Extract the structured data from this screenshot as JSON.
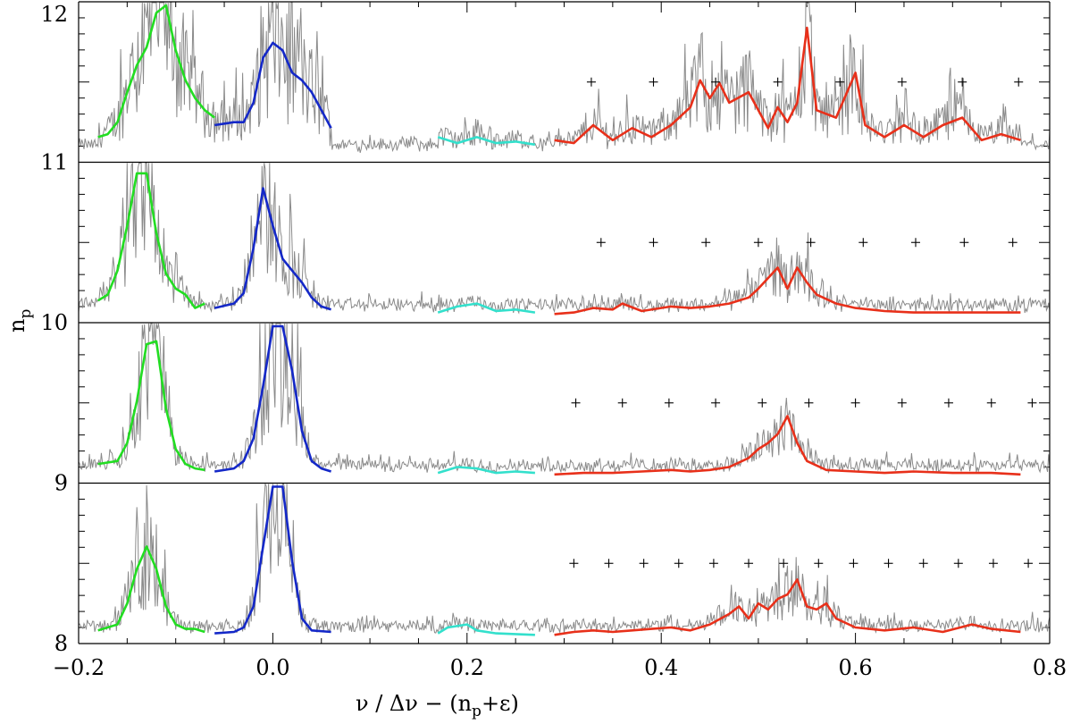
{
  "chart_data": {
    "type": "line",
    "title": "",
    "xlabel": "ν / Δν − (n",
    "xlabel_sub": "p",
    "xlabel_tail": "+ε)",
    "ylabel": "n",
    "ylabel_sub": "p",
    "xlim": [
      -0.2,
      0.8
    ],
    "x_ticks": [
      "−0.2",
      "0.0",
      "0.2",
      "0.4",
      "0.6",
      "0.8"
    ],
    "x_tick_values": [
      -0.2,
      0.0,
      0.2,
      0.4,
      0.6,
      0.8
    ],
    "grid": false,
    "legend": "none",
    "colors": {
      "spectrum": "#8a8a8a",
      "l2": "#22dd22",
      "l0": "#1428c8",
      "l3": "#33e0cc",
      "mixed_l1": "#e8301a",
      "frame": "#000000",
      "markers": "#000000"
    },
    "panels": [
      {
        "name": "n_p = 11",
        "y_top_label": "12",
        "y_bottom_label": "11",
        "smooth_green": [
          [
            -0.18,
            0.12
          ],
          [
            -0.17,
            0.14
          ],
          [
            -0.16,
            0.22
          ],
          [
            -0.15,
            0.42
          ],
          [
            -0.14,
            0.6
          ],
          [
            -0.13,
            0.72
          ],
          [
            -0.12,
            0.95
          ],
          [
            -0.11,
            1.0
          ],
          [
            -0.1,
            0.7
          ],
          [
            -0.09,
            0.5
          ],
          [
            -0.08,
            0.38
          ],
          [
            -0.07,
            0.3
          ],
          [
            -0.06,
            0.25
          ]
        ],
        "smooth_blue": [
          [
            -0.06,
            0.2
          ],
          [
            -0.04,
            0.22
          ],
          [
            -0.03,
            0.22
          ],
          [
            -0.02,
            0.35
          ],
          [
            -0.01,
            0.65
          ],
          [
            0.0,
            0.75
          ],
          [
            0.01,
            0.7
          ],
          [
            0.02,
            0.55
          ],
          [
            0.03,
            0.5
          ],
          [
            0.04,
            0.42
          ],
          [
            0.05,
            0.3
          ],
          [
            0.06,
            0.18
          ]
        ],
        "smooth_cyan": [
          [
            0.17,
            0.12
          ],
          [
            0.19,
            0.08
          ],
          [
            0.21,
            0.12
          ],
          [
            0.23,
            0.08
          ],
          [
            0.25,
            0.09
          ],
          [
            0.27,
            0.07
          ]
        ],
        "smooth_red": [
          [
            0.29,
            0.1
          ],
          [
            0.31,
            0.08
          ],
          [
            0.33,
            0.2
          ],
          [
            0.35,
            0.1
          ],
          [
            0.37,
            0.18
          ],
          [
            0.39,
            0.12
          ],
          [
            0.41,
            0.2
          ],
          [
            0.43,
            0.32
          ],
          [
            0.44,
            0.5
          ],
          [
            0.45,
            0.38
          ],
          [
            0.46,
            0.48
          ],
          [
            0.47,
            0.35
          ],
          [
            0.49,
            0.42
          ],
          [
            0.5,
            0.3
          ],
          [
            0.51,
            0.18
          ],
          [
            0.52,
            0.32
          ],
          [
            0.53,
            0.22
          ],
          [
            0.54,
            0.35
          ],
          [
            0.55,
            0.85
          ],
          [
            0.56,
            0.3
          ],
          [
            0.58,
            0.25
          ],
          [
            0.6,
            0.55
          ],
          [
            0.61,
            0.2
          ],
          [
            0.63,
            0.12
          ],
          [
            0.65,
            0.2
          ],
          [
            0.67,
            0.12
          ],
          [
            0.69,
            0.2
          ],
          [
            0.71,
            0.25
          ],
          [
            0.73,
            0.1
          ],
          [
            0.75,
            0.14
          ],
          [
            0.77,
            0.1
          ]
        ],
        "plus_markers_x": [
          0.328,
          0.392,
          0.456,
          0.52,
          0.584,
          0.648,
          0.71,
          0.768
        ],
        "plus_y": 0.5
      },
      {
        "name": "n_p = 10",
        "y_top_label": "11",
        "y_bottom_label": "10",
        "smooth_green": [
          [
            -0.18,
            0.1
          ],
          [
            -0.17,
            0.14
          ],
          [
            -0.16,
            0.3
          ],
          [
            -0.15,
            0.6
          ],
          [
            -0.14,
            0.95
          ],
          [
            -0.13,
            0.95
          ],
          [
            -0.12,
            0.55
          ],
          [
            -0.11,
            0.28
          ],
          [
            -0.1,
            0.18
          ],
          [
            -0.09,
            0.14
          ],
          [
            -0.08,
            0.05
          ],
          [
            -0.07,
            0.08
          ]
        ],
        "smooth_blue": [
          [
            -0.06,
            0.05
          ],
          [
            -0.04,
            0.08
          ],
          [
            -0.03,
            0.15
          ],
          [
            -0.02,
            0.45
          ],
          [
            -0.01,
            0.85
          ],
          [
            0.0,
            0.6
          ],
          [
            0.01,
            0.38
          ],
          [
            0.02,
            0.3
          ],
          [
            0.03,
            0.22
          ],
          [
            0.04,
            0.12
          ],
          [
            0.05,
            0.06
          ],
          [
            0.06,
            0.04
          ]
        ],
        "smooth_cyan": [
          [
            0.17,
            0.02
          ],
          [
            0.19,
            0.06
          ],
          [
            0.21,
            0.08
          ],
          [
            0.23,
            0.03
          ],
          [
            0.25,
            0.04
          ],
          [
            0.27,
            0.02
          ]
        ],
        "smooth_red": [
          [
            0.29,
            0.01
          ],
          [
            0.31,
            0.02
          ],
          [
            0.33,
            0.05
          ],
          [
            0.35,
            0.04
          ],
          [
            0.36,
            0.08
          ],
          [
            0.38,
            0.03
          ],
          [
            0.41,
            0.06
          ],
          [
            0.43,
            0.05
          ],
          [
            0.45,
            0.06
          ],
          [
            0.47,
            0.08
          ],
          [
            0.49,
            0.12
          ],
          [
            0.5,
            0.18
          ],
          [
            0.51,
            0.25
          ],
          [
            0.52,
            0.32
          ],
          [
            0.53,
            0.18
          ],
          [
            0.54,
            0.32
          ],
          [
            0.55,
            0.22
          ],
          [
            0.56,
            0.14
          ],
          [
            0.58,
            0.08
          ],
          [
            0.6,
            0.05
          ],
          [
            0.63,
            0.03
          ],
          [
            0.66,
            0.02
          ],
          [
            0.7,
            0.02
          ],
          [
            0.74,
            0.02
          ],
          [
            0.77,
            0.02
          ]
        ],
        "plus_markers_x": [
          0.338,
          0.392,
          0.446,
          0.5,
          0.554,
          0.608,
          0.662,
          0.712,
          0.762
        ],
        "plus_y": 0.5
      },
      {
        "name": "n_p = 9",
        "y_top_label": "10",
        "y_bottom_label": "9",
        "smooth_green": [
          [
            -0.18,
            0.08
          ],
          [
            -0.16,
            0.1
          ],
          [
            -0.15,
            0.22
          ],
          [
            -0.14,
            0.5
          ],
          [
            -0.13,
            0.88
          ],
          [
            -0.12,
            0.9
          ],
          [
            -0.11,
            0.45
          ],
          [
            -0.1,
            0.18
          ],
          [
            -0.09,
            0.08
          ],
          [
            -0.08,
            0.05
          ],
          [
            -0.07,
            0.04
          ]
        ],
        "smooth_blue": [
          [
            -0.06,
            0.03
          ],
          [
            -0.04,
            0.05
          ],
          [
            -0.03,
            0.1
          ],
          [
            -0.02,
            0.25
          ],
          [
            -0.01,
            0.6
          ],
          [
            0.0,
            1.0
          ],
          [
            0.01,
            1.0
          ],
          [
            0.02,
            0.7
          ],
          [
            0.03,
            0.3
          ],
          [
            0.04,
            0.1
          ],
          [
            0.05,
            0.05
          ],
          [
            0.06,
            0.03
          ]
        ],
        "smooth_cyan": [
          [
            0.17,
            0.02
          ],
          [
            0.19,
            0.06
          ],
          [
            0.21,
            0.05
          ],
          [
            0.23,
            0.02
          ],
          [
            0.25,
            0.03
          ],
          [
            0.27,
            0.02
          ]
        ],
        "smooth_red": [
          [
            0.29,
            0.01
          ],
          [
            0.32,
            0.02
          ],
          [
            0.35,
            0.02
          ],
          [
            0.38,
            0.03
          ],
          [
            0.41,
            0.04
          ],
          [
            0.43,
            0.03
          ],
          [
            0.45,
            0.04
          ],
          [
            0.47,
            0.06
          ],
          [
            0.49,
            0.12
          ],
          [
            0.5,
            0.18
          ],
          [
            0.51,
            0.22
          ],
          [
            0.52,
            0.28
          ],
          [
            0.53,
            0.4
          ],
          [
            0.54,
            0.22
          ],
          [
            0.55,
            0.1
          ],
          [
            0.57,
            0.04
          ],
          [
            0.6,
            0.03
          ],
          [
            0.63,
            0.02
          ],
          [
            0.66,
            0.03
          ],
          [
            0.7,
            0.02
          ],
          [
            0.74,
            0.02
          ],
          [
            0.77,
            0.01
          ]
        ],
        "plus_markers_x": [
          0.312,
          0.36,
          0.408,
          0.456,
          0.504,
          0.552,
          0.6,
          0.648,
          0.696,
          0.74,
          0.782
        ],
        "plus_y": 0.5
      },
      {
        "name": "n_p = 8",
        "y_top_label": "9",
        "y_bottom_label": "8",
        "smooth_green": [
          [
            -0.18,
            0.04
          ],
          [
            -0.16,
            0.08
          ],
          [
            -0.15,
            0.22
          ],
          [
            -0.14,
            0.45
          ],
          [
            -0.13,
            0.6
          ],
          [
            -0.12,
            0.45
          ],
          [
            -0.11,
            0.2
          ],
          [
            -0.1,
            0.08
          ],
          [
            -0.09,
            0.05
          ],
          [
            -0.08,
            0.05
          ],
          [
            -0.07,
            0.03
          ]
        ],
        "smooth_blue": [
          [
            -0.06,
            0.02
          ],
          [
            -0.04,
            0.03
          ],
          [
            -0.03,
            0.06
          ],
          [
            -0.02,
            0.2
          ],
          [
            -0.01,
            0.6
          ],
          [
            0.0,
            1.0
          ],
          [
            0.01,
            1.0
          ],
          [
            0.02,
            0.5
          ],
          [
            0.03,
            0.12
          ],
          [
            0.04,
            0.04
          ],
          [
            0.06,
            0.03
          ]
        ],
        "smooth_cyan": [
          [
            0.17,
            0.02
          ],
          [
            0.18,
            0.06
          ],
          [
            0.2,
            0.08
          ],
          [
            0.21,
            0.04
          ],
          [
            0.23,
            0.02
          ],
          [
            0.27,
            0.01
          ]
        ],
        "smooth_red": [
          [
            0.29,
            0.01
          ],
          [
            0.31,
            0.03
          ],
          [
            0.33,
            0.04
          ],
          [
            0.35,
            0.03
          ],
          [
            0.37,
            0.04
          ],
          [
            0.39,
            0.05
          ],
          [
            0.41,
            0.06
          ],
          [
            0.43,
            0.04
          ],
          [
            0.45,
            0.08
          ],
          [
            0.47,
            0.15
          ],
          [
            0.48,
            0.2
          ],
          [
            0.49,
            0.12
          ],
          [
            0.5,
            0.22
          ],
          [
            0.51,
            0.18
          ],
          [
            0.52,
            0.25
          ],
          [
            0.53,
            0.28
          ],
          [
            0.54,
            0.38
          ],
          [
            0.55,
            0.2
          ],
          [
            0.56,
            0.18
          ],
          [
            0.57,
            0.22
          ],
          [
            0.58,
            0.12
          ],
          [
            0.6,
            0.06
          ],
          [
            0.63,
            0.04
          ],
          [
            0.66,
            0.06
          ],
          [
            0.69,
            0.03
          ],
          [
            0.72,
            0.08
          ],
          [
            0.74,
            0.05
          ],
          [
            0.77,
            0.03
          ]
        ],
        "plus_markers_x": [
          0.31,
          0.346,
          0.382,
          0.418,
          0.454,
          0.49,
          0.526,
          0.562,
          0.598,
          0.634,
          0.67,
          0.706,
          0.742,
          0.778
        ],
        "plus_y": 0.5
      }
    ]
  }
}
